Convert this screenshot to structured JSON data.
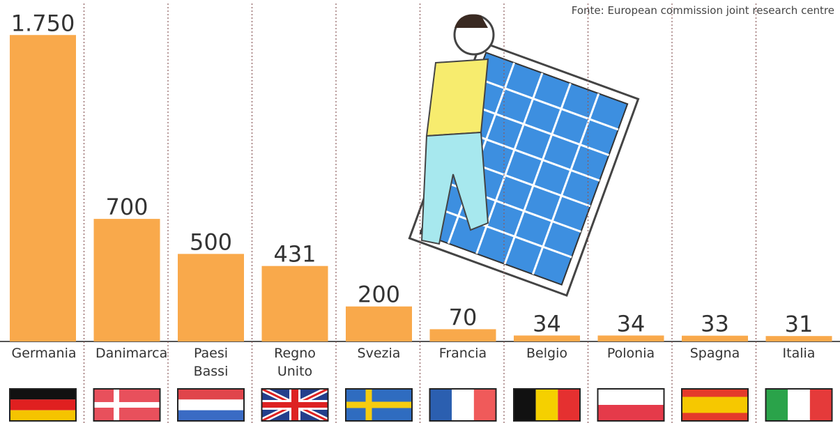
{
  "chart_data": {
    "type": "bar",
    "source": "Fonte: European commission joint research centre",
    "categories": [
      "Germania",
      "Danimarca",
      "Paesi Bassi",
      "Regno Unito",
      "Svezia",
      "Francia",
      "Belgio",
      "Polonia",
      "Spagna",
      "Italia"
    ],
    "values": [
      1750,
      700,
      500,
      431,
      200,
      70,
      34,
      34,
      33,
      31
    ],
    "value_labels": [
      "1.750",
      "700",
      "500",
      "431",
      "200",
      "70",
      "34",
      "34",
      "33",
      "31"
    ],
    "color": "#f9a94b",
    "ylim": [
      0,
      1950
    ]
  }
}
